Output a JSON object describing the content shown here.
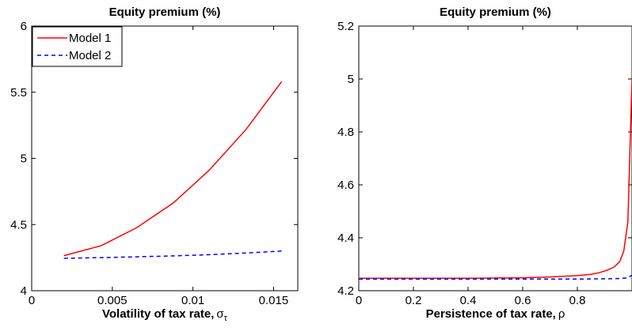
{
  "chart_data": [
    {
      "type": "line",
      "title": "Equity premium (%)",
      "xlabel": "Volatility of tax rate,",
      "xlabel_symbol": "σ",
      "xlabel_subscript": "τ",
      "ylabel": "",
      "xlim": [
        0,
        0.0165
      ],
      "ylim": [
        4,
        6
      ],
      "xticks": [
        0,
        0.005,
        0.01,
        0.015
      ],
      "xtick_labels": [
        "0",
        "0.005",
        "0.01",
        "0.015"
      ],
      "yticks": [
        4,
        4.5,
        5,
        5.5,
        6
      ],
      "ytick_labels": [
        "4",
        "4.5",
        "5",
        "5.5",
        "6"
      ],
      "legend": {
        "placement": "top-left",
        "entries": [
          "Model 1",
          "Model 2"
        ]
      },
      "series": [
        {
          "name": "Model 1",
          "color": "#ff0000",
          "dash": "solid",
          "x": [
            0.002,
            0.0043,
            0.0065,
            0.0088,
            0.011,
            0.0133,
            0.0155
          ],
          "y": [
            4.265,
            4.34,
            4.475,
            4.665,
            4.91,
            5.22,
            5.58
          ]
        },
        {
          "name": "Model 2",
          "color": "#0000ff",
          "dash": "dashed",
          "x": [
            0.002,
            0.0043,
            0.0065,
            0.0088,
            0.011,
            0.0133,
            0.0155
          ],
          "y": [
            4.245,
            4.25,
            4.256,
            4.263,
            4.272,
            4.285,
            4.3
          ]
        }
      ]
    },
    {
      "type": "line",
      "title": "Equity premium (%)",
      "xlabel": "Persistence of tax rate,",
      "xlabel_symbol": "ρ",
      "xlabel_subscript": "",
      "ylabel": "",
      "xlim": [
        0,
        1
      ],
      "ylim": [
        4.2,
        5.2
      ],
      "xticks": [
        0,
        0.2,
        0.4,
        0.6,
        0.8
      ],
      "xtick_labels": [
        "0",
        "0.2",
        "0.4",
        "0.6",
        "0.8"
      ],
      "yticks": [
        4.2,
        4.4,
        4.6,
        4.8,
        5,
        5.2
      ],
      "ytick_labels": [
        "4.2",
        "4.4",
        "4.6",
        "4.8",
        "5",
        "5.2"
      ],
      "legend": null,
      "series": [
        {
          "name": "Model 1",
          "color": "#ff0000",
          "dash": "solid",
          "x": [
            0,
            0.1,
            0.2,
            0.3,
            0.4,
            0.5,
            0.6,
            0.7,
            0.8,
            0.85,
            0.88,
            0.91,
            0.935,
            0.955,
            0.97,
            0.985,
            1.0
          ],
          "y": [
            4.247,
            4.247,
            4.247,
            4.247,
            4.247,
            4.248,
            4.249,
            4.252,
            4.257,
            4.262,
            4.268,
            4.278,
            4.29,
            4.31,
            4.35,
            4.46,
            5.0
          ]
        },
        {
          "name": "Model 2",
          "color": "#0000ff",
          "dash": "dashed",
          "x": [
            0,
            0.2,
            0.4,
            0.6,
            0.8,
            0.9,
            0.95,
            0.98,
            1.0
          ],
          "y": [
            4.244,
            4.244,
            4.244,
            4.244,
            4.244,
            4.245,
            4.246,
            4.248,
            4.258
          ]
        }
      ]
    }
  ]
}
